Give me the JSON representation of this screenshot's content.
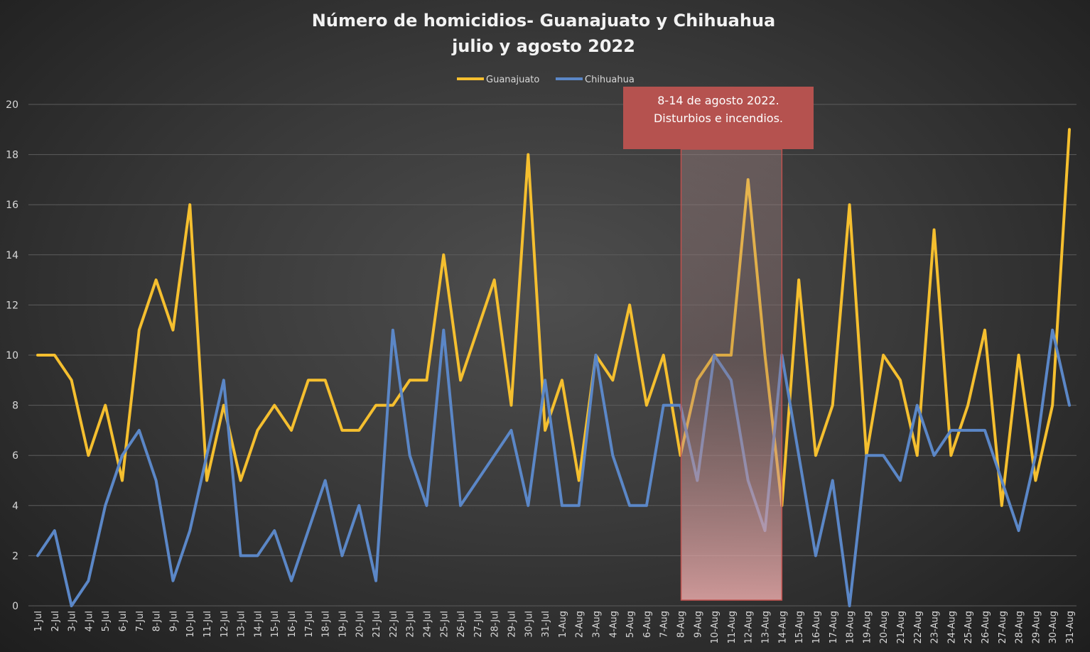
{
  "chart_data": {
    "type": "line",
    "title": [
      "Número de homicidios- Guanajuato y Chihuahua",
      "julio y agosto 2022"
    ],
    "xlabel": "",
    "ylabel": "",
    "ylim": [
      0,
      20
    ],
    "yticks": [
      "0",
      "2",
      "4",
      "6",
      "8",
      "10",
      "12",
      "14",
      "16",
      "18",
      "20"
    ],
    "grid": true,
    "legend_position": "top-center",
    "categories": [
      "1-Jul",
      "2-Jul",
      "3-Jul",
      "4-Jul",
      "5-Jul",
      "6-Jul",
      "7-Jul",
      "8-Jul",
      "9-Jul",
      "10-Jul",
      "11-Jul",
      "12-Jul",
      "13-Jul",
      "14-Jul",
      "15-Jul",
      "16-Jul",
      "17-Jul",
      "18-Jul",
      "19-Jul",
      "20-Jul",
      "21-Jul",
      "22-Jul",
      "23-Jul",
      "24-Jul",
      "25-Jul",
      "26-Jul",
      "27-Jul",
      "28-Jul",
      "29-Jul",
      "30-Jul",
      "31-Jul",
      "1-Aug",
      "2-Aug",
      "3-Aug",
      "4-Aug",
      "5-Aug",
      "6-Aug",
      "7-Aug",
      "8-Aug",
      "9-Aug",
      "10-Aug",
      "11-Aug",
      "12-Aug",
      "13-Aug",
      "14-Aug",
      "15-Aug",
      "16-Aug",
      "17-Aug",
      "18-Aug",
      "19-Aug",
      "20-Aug",
      "21-Aug",
      "22-Aug",
      "23-Aug",
      "24-Aug",
      "25-Aug",
      "26-Aug",
      "27-Aug",
      "28-Aug",
      "29-Aug",
      "30-Aug",
      "31-Aug"
    ],
    "series": [
      {
        "name": "Guanajuato",
        "color": "#f5bf2f",
        "values": [
          10,
          10,
          9,
          6,
          8,
          5,
          11,
          13,
          11,
          16,
          5,
          8,
          5,
          7,
          8,
          7,
          9,
          9,
          7,
          7,
          8,
          8,
          9,
          9,
          14,
          9,
          11,
          13,
          8,
          18,
          7,
          9,
          5,
          10,
          9,
          12,
          8,
          10,
          6,
          9,
          10,
          10,
          17,
          10,
          4,
          13,
          6,
          8,
          16,
          6,
          10,
          9,
          6,
          15,
          6,
          8,
          11,
          4,
          10,
          5,
          8,
          19
        ]
      },
      {
        "name": "Chihuahua",
        "color": "#5b87c7",
        "values": [
          2,
          3,
          0,
          1,
          4,
          6,
          7,
          5,
          1,
          3,
          6,
          9,
          2,
          2,
          3,
          1,
          3,
          5,
          2,
          4,
          1,
          11,
          6,
          4,
          11,
          4,
          5,
          6,
          7,
          4,
          9,
          4,
          4,
          10,
          6,
          4,
          4,
          8,
          8,
          5,
          10,
          9,
          5,
          3,
          10,
          6,
          2,
          5,
          0,
          6,
          6,
          5,
          8,
          6,
          7,
          7,
          7,
          5,
          3,
          6,
          11,
          8
        ]
      }
    ],
    "annotations": [
      {
        "text": [
          "8-14 de agosto 2022.",
          "Disturbios e incendios."
        ],
        "range": [
          "8-Aug",
          "14-Aug"
        ],
        "color": "#b5524f"
      }
    ]
  }
}
